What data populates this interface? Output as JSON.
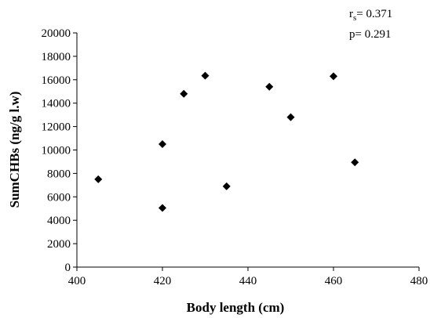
{
  "chart_data": {
    "type": "scatter",
    "xlabel": "Body length (cm)",
    "ylabel": "SumCHBs (ng/g l.w)",
    "xlim": [
      400,
      480
    ],
    "ylim": [
      0,
      20000
    ],
    "x_ticks": [
      400,
      420,
      440,
      460,
      480
    ],
    "y_ticks": [
      0,
      2000,
      4000,
      6000,
      8000,
      10000,
      12000,
      14000,
      16000,
      18000,
      20000
    ],
    "grid": false,
    "marker": "diamond",
    "marker_color": "#000000",
    "annotations": {
      "rs_symbol": "r",
      "rs_subscript": "s",
      "rs_value": "= 0.371",
      "p_text": "p= 0.291"
    },
    "points": [
      {
        "x": 405,
        "y": 7500
      },
      {
        "x": 420,
        "y": 10500
      },
      {
        "x": 420,
        "y": 5050
      },
      {
        "x": 425,
        "y": 14800
      },
      {
        "x": 430,
        "y": 16350
      },
      {
        "x": 435,
        "y": 6900
      },
      {
        "x": 445,
        "y": 15400
      },
      {
        "x": 450,
        "y": 12800
      },
      {
        "x": 460,
        "y": 16300
      },
      {
        "x": 465,
        "y": 8950
      }
    ]
  }
}
